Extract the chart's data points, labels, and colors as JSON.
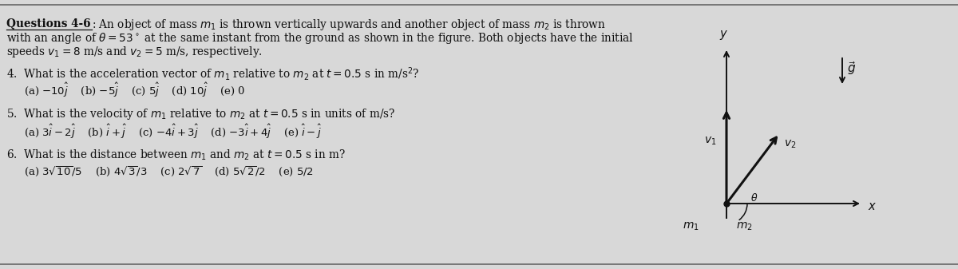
{
  "bg_color": "#d8d8d8",
  "text_color": "#111111",
  "arrow_color": "#111111",
  "title_bold": "Questions 4-6",
  "title_rest": ": An object of mass $m_1$ is thrown vertically upwards and another object of mass $m_2$ is thrown",
  "intro_line2": "with an angle of $\\theta = 53^\\circ$ at the same instant from the ground as shown in the figure. Both objects have the initial",
  "intro_line3": "speeds $v_1 = 8$ m/s and $v_2 = 5$ m/s, respectively.",
  "q4": "4.  What is the acceleration vector of $m_1$ relative to $m_2$ at $t = 0.5$ s in m/s$^2$?",
  "q4_opts": "(a) $-10\\hat{j}$    (b) $-5\\hat{j}$    (c) $5\\hat{j}$    (d) $10\\hat{j}$    (e) 0",
  "q5": "5.  What is the velocity of $m_1$ relative to $m_2$ at $t = 0.5$ s in units of m/s?",
  "q5_opts": "(a) $3\\hat{i} - 2\\hat{j}$    (b) $\\hat{i} + \\hat{j}$    (c) $-4\\hat{i} + 3\\hat{j}$    (d) $-3\\hat{i} + 4\\hat{j}$    (e) $\\hat{i} - \\hat{j}$",
  "q6": "6.  What is the distance between $m_1$ and $m_2$ at $t = 0.5$ s in m?",
  "q6_opts": "(a) $3\\sqrt{10}/5$    (b) $4\\sqrt{3}/3$    (c) $2\\sqrt{7}$    (d) $5\\sqrt{2}/2$    (e) $5/2$",
  "fontsize_text": 9.8,
  "fontsize_opts": 9.5
}
